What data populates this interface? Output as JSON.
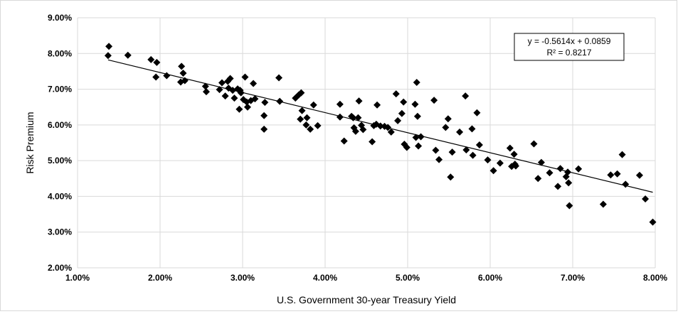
{
  "chart_data": {
    "type": "scatter",
    "title": "",
    "xlabel": "U.S. Government 30-year Treasury Yield",
    "ylabel": "Risk Premium",
    "xlim": [
      0.01,
      0.08
    ],
    "ylim": [
      0.02,
      0.09
    ],
    "x_ticks": [
      "1.00%",
      "2.00%",
      "3.00%",
      "4.00%",
      "5.00%",
      "6.00%",
      "7.00%",
      "8.00%"
    ],
    "y_ticks": [
      "2.00%",
      "3.00%",
      "4.00%",
      "5.00%",
      "6.00%",
      "7.00%",
      "8.00%",
      "9.00%"
    ],
    "grid": true,
    "marker": "diamond",
    "marker_color": "#000000",
    "trendline": {
      "type": "linear",
      "slope": -0.5614,
      "intercept": 0.0859,
      "equation": "y = -0.5614x + 0.0859",
      "r_squared": "R² = 0.8217",
      "legend_position": "top-right"
    },
    "points": [
      [
        0.0138,
        0.082
      ],
      [
        0.0137,
        0.0794
      ],
      [
        0.0161,
        0.0795
      ],
      [
        0.0189,
        0.0783
      ],
      [
        0.0196,
        0.0775
      ],
      [
        0.0195,
        0.0734
      ],
      [
        0.0208,
        0.0738
      ],
      [
        0.0226,
        0.0764
      ],
      [
        0.0228,
        0.0745
      ],
      [
        0.0225,
        0.072
      ],
      [
        0.023,
        0.0724
      ],
      [
        0.0255,
        0.0708
      ],
      [
        0.0256,
        0.0693
      ],
      [
        0.0272,
        0.0699
      ],
      [
        0.0275,
        0.0718
      ],
      [
        0.0279,
        0.0681
      ],
      [
        0.0282,
        0.0722
      ],
      [
        0.0285,
        0.073
      ],
      [
        0.0283,
        0.0703
      ],
      [
        0.0288,
        0.0697
      ],
      [
        0.029,
        0.0675
      ],
      [
        0.0294,
        0.0701
      ],
      [
        0.0297,
        0.0697
      ],
      [
        0.0298,
        0.069
      ],
      [
        0.0296,
        0.0644
      ],
      [
        0.0303,
        0.0734
      ],
      [
        0.0301,
        0.0671
      ],
      [
        0.0305,
        0.0664
      ],
      [
        0.0306,
        0.065
      ],
      [
        0.031,
        0.0668
      ],
      [
        0.0313,
        0.0716
      ],
      [
        0.0315,
        0.0673
      ],
      [
        0.0326,
        0.0626
      ],
      [
        0.0327,
        0.0663
      ],
      [
        0.0326,
        0.0588
      ],
      [
        0.0344,
        0.0732
      ],
      [
        0.0345,
        0.0666
      ],
      [
        0.0364,
        0.0675
      ],
      [
        0.0368,
        0.0684
      ],
      [
        0.0371,
        0.069
      ],
      [
        0.0372,
        0.064
      ],
      [
        0.037,
        0.0616
      ],
      [
        0.0377,
        0.06
      ],
      [
        0.0378,
        0.062
      ],
      [
        0.0382,
        0.0588
      ],
      [
        0.0386,
        0.0656
      ],
      [
        0.0391,
        0.0598
      ],
      [
        0.0418,
        0.0658
      ],
      [
        0.0418,
        0.0622
      ],
      [
        0.0423,
        0.0555
      ],
      [
        0.0432,
        0.0624
      ],
      [
        0.0434,
        0.062
      ],
      [
        0.0435,
        0.0592
      ],
      [
        0.0437,
        0.0582
      ],
      [
        0.044,
        0.062
      ],
      [
        0.0441,
        0.0667
      ],
      [
        0.0444,
        0.0599
      ],
      [
        0.0446,
        0.0587
      ],
      [
        0.0457,
        0.0553
      ],
      [
        0.0459,
        0.0598
      ],
      [
        0.0462,
        0.0602
      ],
      [
        0.0463,
        0.0656
      ],
      [
        0.0467,
        0.0597
      ],
      [
        0.0472,
        0.0596
      ],
      [
        0.0476,
        0.0593
      ],
      [
        0.048,
        0.058
      ],
      [
        0.0486,
        0.0687
      ],
      [
        0.0488,
        0.0612
      ],
      [
        0.0493,
        0.0632
      ],
      [
        0.0495,
        0.0664
      ],
      [
        0.0496,
        0.0546
      ],
      [
        0.0499,
        0.0537
      ],
      [
        0.0509,
        0.0658
      ],
      [
        0.051,
        0.0565
      ],
      [
        0.0511,
        0.0719
      ],
      [
        0.0512,
        0.0624
      ],
      [
        0.0513,
        0.0541
      ],
      [
        0.0516,
        0.0567
      ],
      [
        0.0532,
        0.0669
      ],
      [
        0.0534,
        0.0529
      ],
      [
        0.0538,
        0.0503
      ],
      [
        0.0546,
        0.0593
      ],
      [
        0.0549,
        0.0617
      ],
      [
        0.0552,
        0.0454
      ],
      [
        0.0554,
        0.0524
      ],
      [
        0.0563,
        0.058
      ],
      [
        0.057,
        0.0681
      ],
      [
        0.0571,
        0.053
      ],
      [
        0.0578,
        0.0589
      ],
      [
        0.0579,
        0.0515
      ],
      [
        0.0584,
        0.0634
      ],
      [
        0.0587,
        0.0544
      ],
      [
        0.0597,
        0.0502
      ],
      [
        0.0604,
        0.0472
      ],
      [
        0.0612,
        0.0493
      ],
      [
        0.0624,
        0.0535
      ],
      [
        0.0626,
        0.0484
      ],
      [
        0.0629,
        0.0518
      ],
      [
        0.063,
        0.049
      ],
      [
        0.0631,
        0.0485
      ],
      [
        0.0653,
        0.0547
      ],
      [
        0.0658,
        0.045
      ],
      [
        0.0662,
        0.0495
      ],
      [
        0.0672,
        0.0466
      ],
      [
        0.0682,
        0.0428
      ],
      [
        0.0685,
        0.0478
      ],
      [
        0.0692,
        0.0455
      ],
      [
        0.0694,
        0.0468
      ],
      [
        0.0695,
        0.0438
      ],
      [
        0.0696,
        0.0374
      ],
      [
        0.0707,
        0.0477
      ],
      [
        0.0737,
        0.0378
      ],
      [
        0.0746,
        0.046
      ],
      [
        0.0754,
        0.0463
      ],
      [
        0.076,
        0.0517
      ],
      [
        0.0764,
        0.0434
      ],
      [
        0.0781,
        0.0459
      ],
      [
        0.0788,
        0.0393
      ],
      [
        0.0797,
        0.0328
      ]
    ]
  }
}
